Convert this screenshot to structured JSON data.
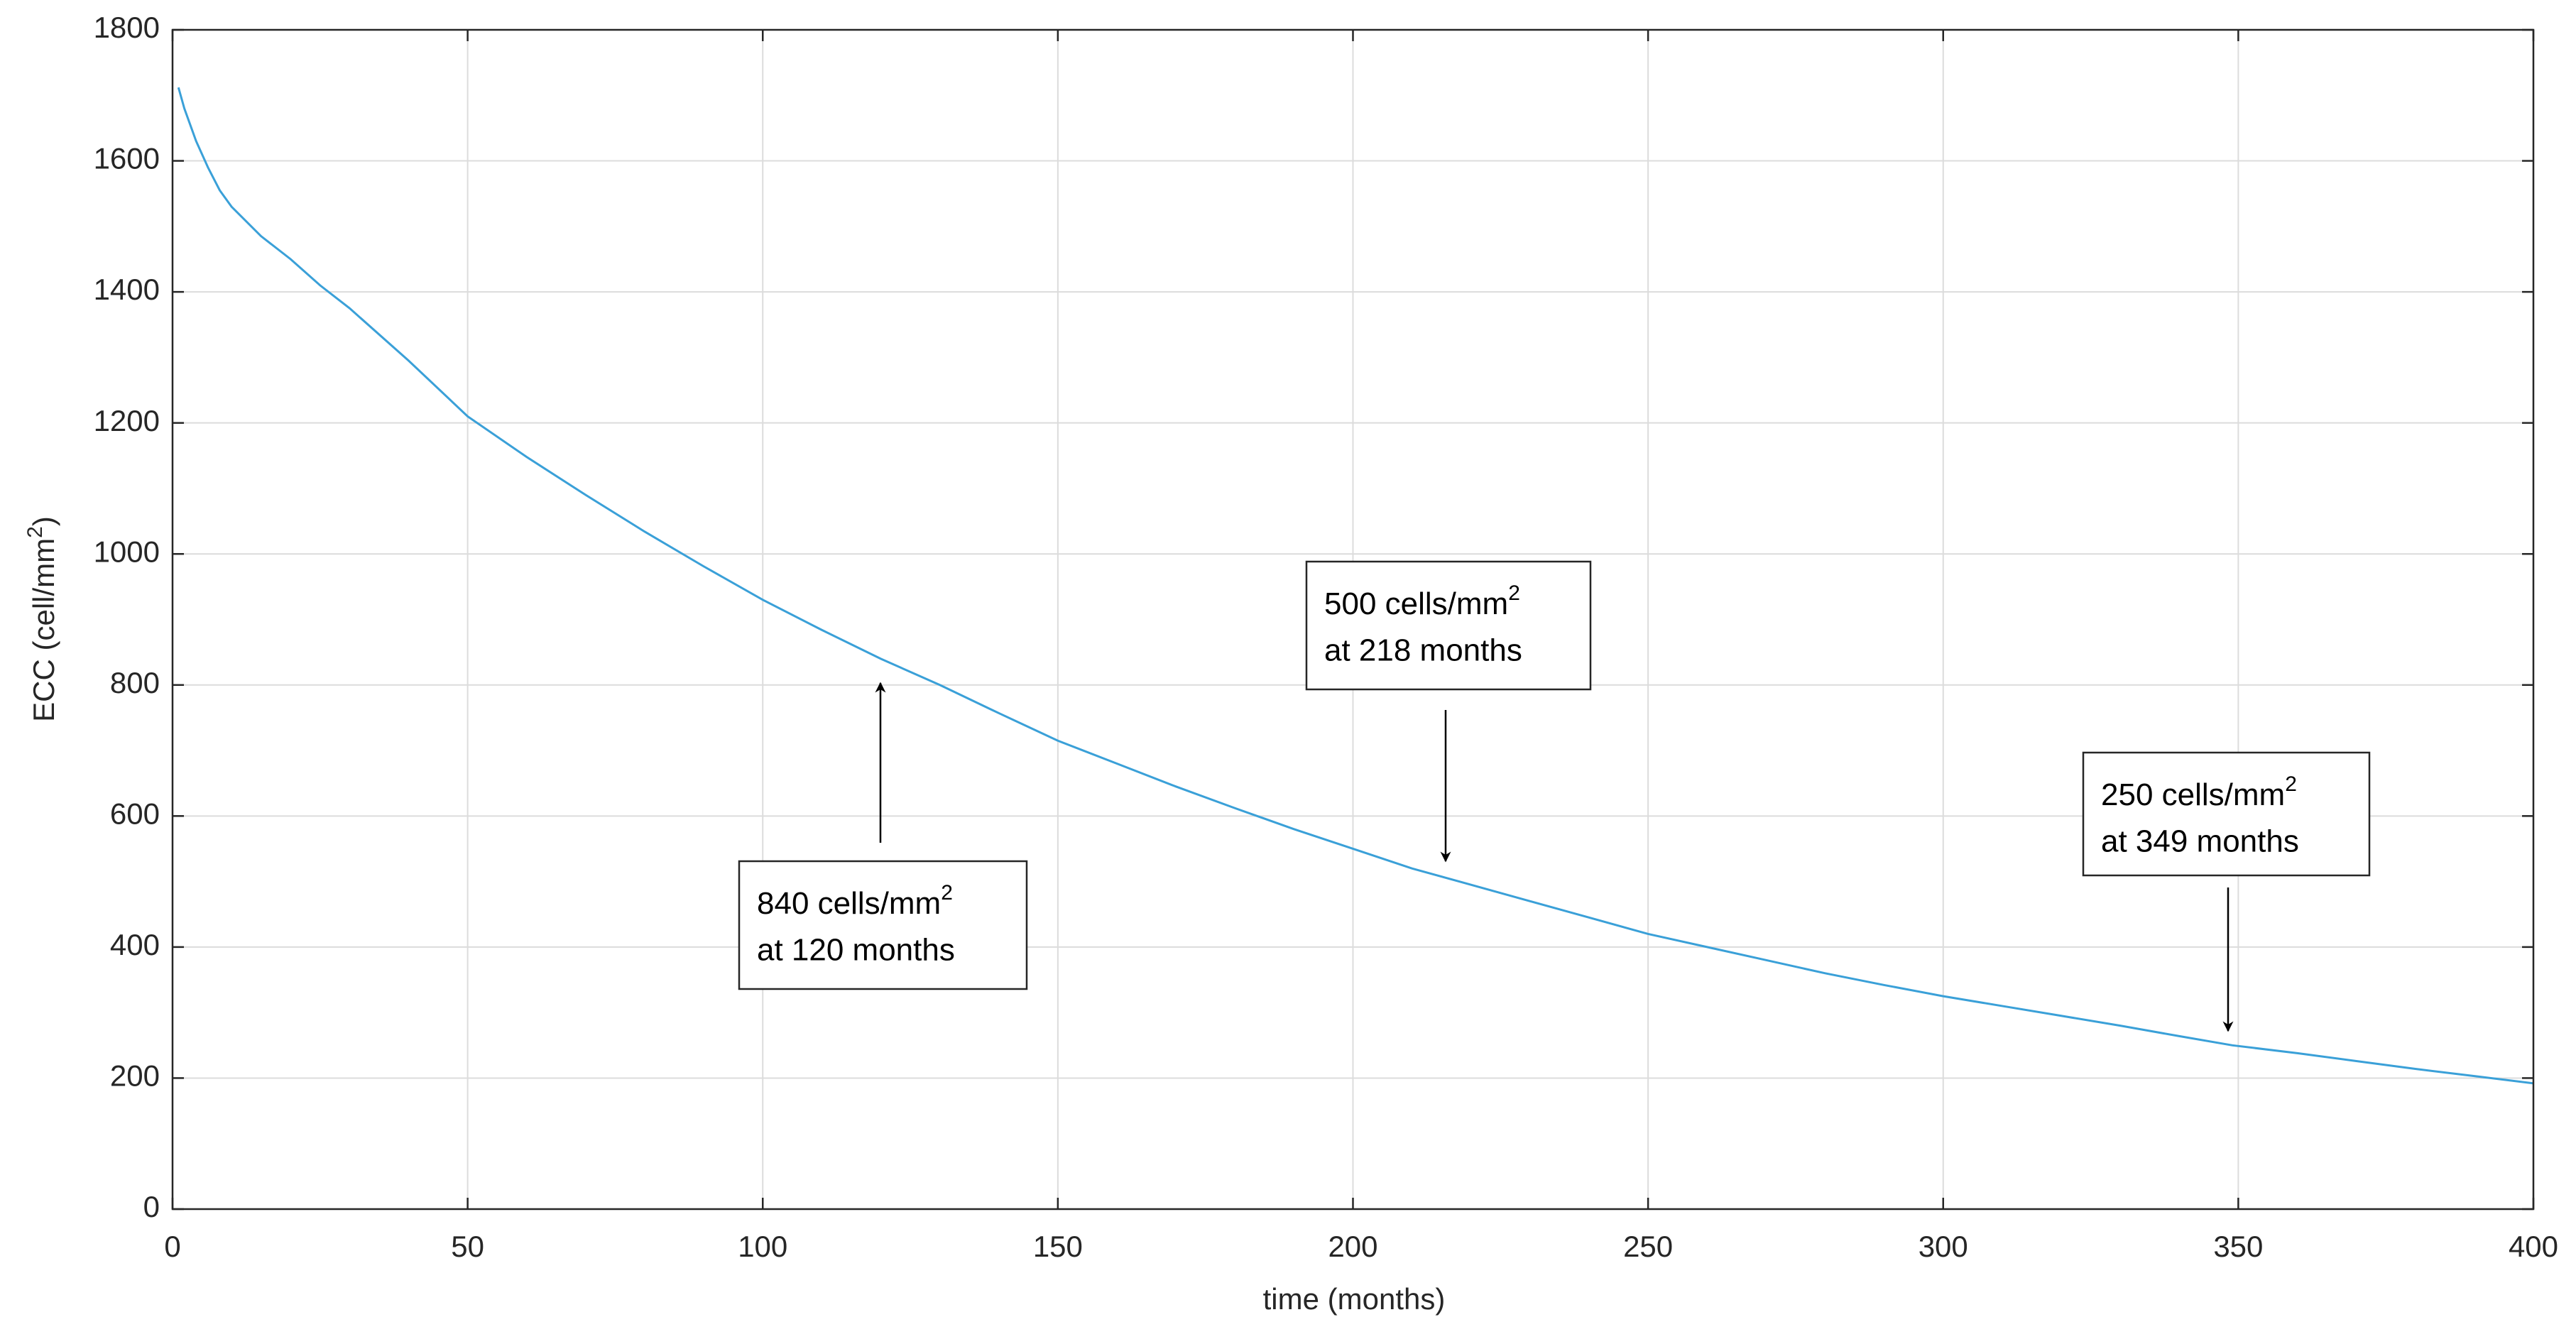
{
  "chart_data": {
    "type": "line",
    "x": [
      1,
      2,
      4,
      6,
      8,
      10,
      15,
      20,
      25,
      30,
      40,
      50,
      60,
      70,
      80,
      90,
      100,
      110,
      120,
      130,
      140,
      150,
      160,
      170,
      180,
      190,
      200,
      210,
      218,
      230,
      240,
      250,
      260,
      270,
      280,
      290,
      300,
      310,
      320,
      330,
      340,
      349,
      360,
      370,
      380,
      390,
      400
    ],
    "series": [
      {
        "color": "#3aa0d8",
        "values": [
          1712,
          1680,
          1630,
          1590,
          1555,
          1530,
          1485,
          1450,
          1410,
          1375,
          1295,
          1210,
          1148,
          1090,
          1034,
          981,
          930,
          884,
          840,
          800,
          757,
          715,
          680,
          645,
          612,
          580,
          550,
          520,
          500,
          470,
          445,
          420,
          400,
          380,
          360,
          342,
          325,
          310,
          295,
          280,
          264,
          250,
          238,
          226,
          214,
          203,
          192
        ]
      }
    ],
    "xlim": [
      0,
      400
    ],
    "xticks": [
      0,
      50,
      100,
      150,
      200,
      250,
      300,
      350,
      400
    ],
    "ylim": [
      0,
      1800
    ],
    "yticks": [
      0,
      200,
      400,
      600,
      800,
      1000,
      1200,
      1400,
      1600,
      1800
    ],
    "grid": true,
    "xlabel": "time (months)",
    "ylabel": {
      "text": "ECC (cell/mm",
      "sup": "2",
      "end": ")"
    },
    "annotations": [
      {
        "text": "840 cells/mm",
        "sup": "2",
        "text2": "at 120 months"
      },
      {
        "text": "500 cells/mm",
        "sup": "2",
        "text2": "at 218 months"
      },
      {
        "text": "250 cells/mm",
        "sup": "2",
        "text2": "at 349 months"
      }
    ]
  }
}
